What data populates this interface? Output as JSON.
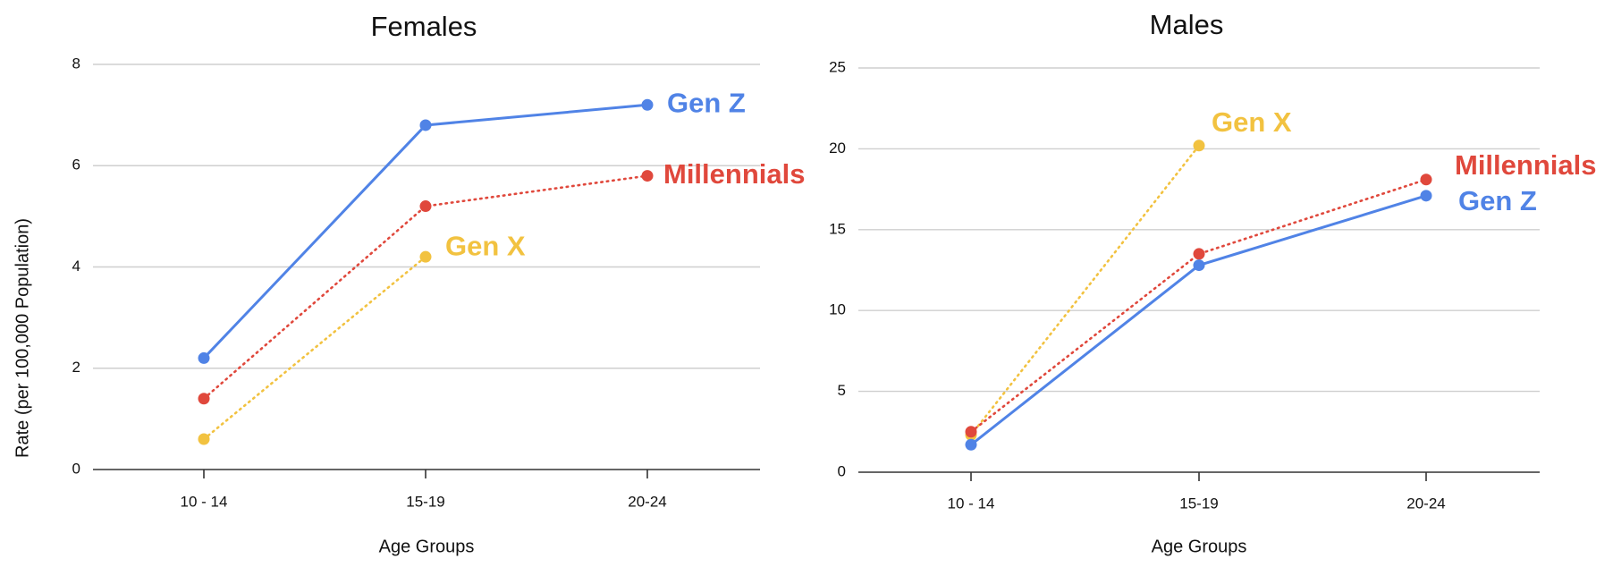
{
  "chart_data": [
    {
      "type": "line",
      "title": "Females",
      "xlabel": "Age Groups",
      "ylabel": "Rate (per 100,000 Population)",
      "categories": [
        "10 - 14",
        "15-19",
        "20-24"
      ],
      "ylim": [
        0,
        8
      ],
      "yticks": [
        0,
        2,
        4,
        6,
        8
      ],
      "grid": true,
      "series": [
        {
          "name": "Gen Z",
          "color": "#5083e6",
          "line_style": "solid",
          "values": [
            2.2,
            6.8,
            7.2
          ]
        },
        {
          "name": "Millennials",
          "color": "#e0483c",
          "line_style": "dotted",
          "values": [
            1.4,
            5.2,
            5.8
          ]
        },
        {
          "name": "Gen X",
          "color": "#f2c240",
          "line_style": "dotted",
          "values": [
            0.6,
            4.2,
            null
          ]
        }
      ]
    },
    {
      "type": "line",
      "title": "Males",
      "xlabel": "Age Groups",
      "ylabel": "",
      "categories": [
        "10 - 14",
        "15-19",
        "20-24"
      ],
      "ylim": [
        0,
        25
      ],
      "yticks": [
        0,
        5,
        10,
        15,
        20,
        25
      ],
      "grid": true,
      "series": [
        {
          "name": "Gen Z",
          "color": "#5083e6",
          "line_style": "solid",
          "values": [
            1.7,
            12.8,
            17.1
          ]
        },
        {
          "name": "Millennials",
          "color": "#e0483c",
          "line_style": "dotted",
          "values": [
            2.5,
            13.5,
            18.1
          ]
        },
        {
          "name": "Gen X",
          "color": "#f2c240",
          "line_style": "dotted",
          "values": [
            2.3,
            20.2,
            null
          ]
        }
      ]
    }
  ]
}
